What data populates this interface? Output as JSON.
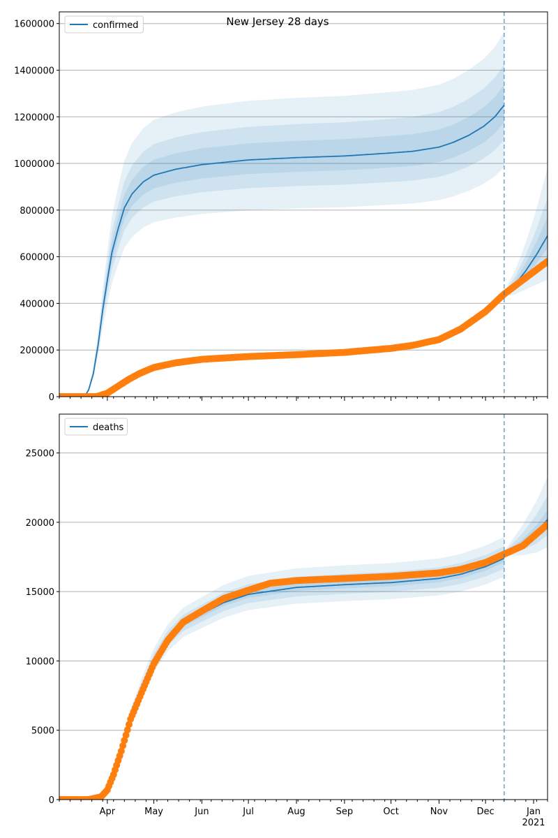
{
  "title": "New Jersey 28 days",
  "colors": {
    "model": "#1f77b4",
    "observed": "#ff7f0e",
    "band": "#1f77b4",
    "grid": "#b0b0b0",
    "vline": "#1f77b4"
  },
  "chart_data": [
    {
      "type": "line",
      "panel": "top",
      "legend": {
        "entries": [
          "confirmed"
        ],
        "placement": "top-left"
      },
      "grid": "horizontal",
      "x_axis": {
        "type": "date",
        "range": [
          "2020-03-01",
          "2021-01-10"
        ],
        "tick_labels": [
          "Apr",
          "May",
          "Jun",
          "Jul",
          "Aug",
          "Sep",
          "Oct",
          "Nov",
          "Dec",
          "Jan\n2021"
        ],
        "tick_labels_visible": false
      },
      "ylim": [
        0,
        1650000
      ],
      "yticks": [
        0,
        200000,
        400000,
        600000,
        800000,
        1000000,
        1200000,
        1400000,
        1600000
      ],
      "forecast_start": "2020-12-13",
      "series": [
        {
          "name": "confirmed",
          "role": "model_median",
          "points": [
            [
              "2020-03-01",
              0
            ],
            [
              "2020-03-15",
              0
            ],
            [
              "2020-03-18",
              8000
            ],
            [
              "2020-03-20",
              30000
            ],
            [
              "2020-03-23",
              100000
            ],
            [
              "2020-03-26",
              220000
            ],
            [
              "2020-03-29",
              370000
            ],
            [
              "2020-04-01",
              500000
            ],
            [
              "2020-04-04",
              620000
            ],
            [
              "2020-04-08",
              720000
            ],
            [
              "2020-04-12",
              810000
            ],
            [
              "2020-04-17",
              870000
            ],
            [
              "2020-04-24",
              920000
            ],
            [
              "2020-05-01",
              950000
            ],
            [
              "2020-05-15",
              975000
            ],
            [
              "2020-06-01",
              995000
            ],
            [
              "2020-07-01",
              1015000
            ],
            [
              "2020-08-01",
              1025000
            ],
            [
              "2020-09-01",
              1032000
            ],
            [
              "2020-10-01",
              1045000
            ],
            [
              "2020-10-15",
              1052000
            ],
            [
              "2020-11-01",
              1070000
            ],
            [
              "2020-11-10",
              1090000
            ],
            [
              "2020-11-20",
              1120000
            ],
            [
              "2020-11-30",
              1160000
            ],
            [
              "2020-12-07",
              1200000
            ],
            [
              "2020-12-13",
              1250000
            ]
          ]
        },
        {
          "role": "model_restart",
          "points": [
            [
              "2020-12-13",
              440000
            ],
            [
              "2020-12-20",
              480000
            ],
            [
              "2020-12-27",
              540000
            ],
            [
              "2021-01-03",
              610000
            ],
            [
              "2021-01-10",
              690000
            ]
          ]
        },
        {
          "role": "observed",
          "points": [
            [
              "2020-03-01",
              0
            ],
            [
              "2020-03-25",
              0
            ],
            [
              "2020-04-01",
              15000
            ],
            [
              "2020-04-08",
              45000
            ],
            [
              "2020-04-15",
              75000
            ],
            [
              "2020-04-22",
              100000
            ],
            [
              "2020-05-01",
              125000
            ],
            [
              "2020-05-15",
              145000
            ],
            [
              "2020-06-01",
              160000
            ],
            [
              "2020-07-01",
              172000
            ],
            [
              "2020-08-01",
              180000
            ],
            [
              "2020-09-01",
              190000
            ],
            [
              "2020-10-01",
              207000
            ],
            [
              "2020-10-15",
              220000
            ],
            [
              "2020-11-01",
              245000
            ],
            [
              "2020-11-15",
              290000
            ],
            [
              "2020-12-01",
              365000
            ],
            [
              "2020-12-13",
              440000
            ],
            [
              "2020-12-25",
              500000
            ],
            [
              "2021-01-10",
              580000
            ]
          ]
        }
      ]
    },
    {
      "type": "line",
      "panel": "bottom",
      "legend": {
        "entries": [
          "deaths"
        ],
        "placement": "top-left"
      },
      "grid": "horizontal",
      "x_axis": {
        "type": "date",
        "range": [
          "2020-03-01",
          "2021-01-10"
        ],
        "tick_labels": [
          "Apr",
          "May",
          "Jun",
          "Jul",
          "Aug",
          "Sep",
          "Oct",
          "Nov",
          "Dec",
          "Jan\n2021"
        ]
      },
      "ylim": [
        0,
        27800
      ],
      "yticks": [
        0,
        5000,
        10000,
        15000,
        20000,
        25000
      ],
      "forecast_start": "2020-12-13",
      "series": [
        {
          "name": "deaths",
          "role": "model_median",
          "points": [
            [
              "2020-03-01",
              0
            ],
            [
              "2020-03-20",
              0
            ],
            [
              "2020-03-28",
              200
            ],
            [
              "2020-04-01",
              600
            ],
            [
              "2020-04-05",
              1800
            ],
            [
              "2020-04-10",
              3800
            ],
            [
              "2020-04-16",
              6000
            ],
            [
              "2020-04-23",
              8000
            ],
            [
              "2020-05-01",
              10000
            ],
            [
              "2020-05-10",
              11600
            ],
            [
              "2020-05-20",
              12700
            ],
            [
              "2020-06-01",
              13400
            ],
            [
              "2020-06-15",
              14200
            ],
            [
              "2020-07-01",
              14800
            ],
            [
              "2020-08-01",
              15300
            ],
            [
              "2020-09-01",
              15500
            ],
            [
              "2020-10-01",
              15650
            ],
            [
              "2020-11-01",
              15950
            ],
            [
              "2020-11-15",
              16250
            ],
            [
              "2020-12-01",
              16800
            ],
            [
              "2020-12-13",
              17400
            ]
          ]
        },
        {
          "role": "model_restart",
          "points": [
            [
              "2020-12-13",
              17750
            ],
            [
              "2020-12-25",
              18500
            ],
            [
              "2021-01-03",
              19300
            ],
            [
              "2021-01-10",
              20200
            ]
          ]
        },
        {
          "role": "observed",
          "points": [
            [
              "2020-03-01",
              0
            ],
            [
              "2020-03-20",
              0
            ],
            [
              "2020-03-28",
              200
            ],
            [
              "2020-04-01",
              700
            ],
            [
              "2020-04-05",
              1800
            ],
            [
              "2020-04-10",
              3500
            ],
            [
              "2020-04-16",
              5800
            ],
            [
              "2020-04-23",
              7700
            ],
            [
              "2020-05-01",
              9800
            ],
            [
              "2020-05-10",
              11500
            ],
            [
              "2020-05-20",
              12800
            ],
            [
              "2020-06-01",
              13600
            ],
            [
              "2020-06-15",
              14500
            ],
            [
              "2020-07-01",
              15100
            ],
            [
              "2020-07-15",
              15600
            ],
            [
              "2020-08-01",
              15800
            ],
            [
              "2020-09-01",
              15950
            ],
            [
              "2020-10-01",
              16100
            ],
            [
              "2020-11-01",
              16350
            ],
            [
              "2020-11-15",
              16600
            ],
            [
              "2020-12-01",
              17100
            ],
            [
              "2020-12-13",
              17700
            ],
            [
              "2020-12-25",
              18300
            ],
            [
              "2021-01-10",
              19850
            ]
          ]
        }
      ]
    }
  ]
}
